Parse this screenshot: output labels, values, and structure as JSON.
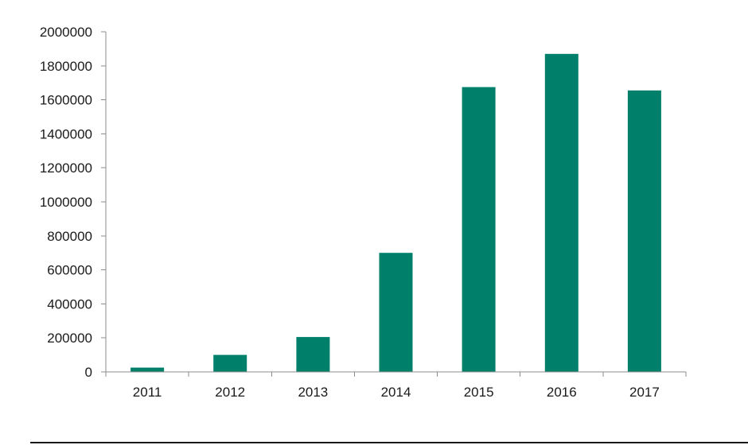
{
  "chart_data": {
    "type": "bar",
    "categories": [
      "2011",
      "2012",
      "2013",
      "2014",
      "2015",
      "2016",
      "2017"
    ],
    "values": [
      25000,
      100000,
      205000,
      700000,
      1675000,
      1870000,
      1655000
    ],
    "title": "",
    "xlabel": "",
    "ylabel": "",
    "ylim": [
      0,
      2000000
    ],
    "yticks": [
      "0",
      "200000",
      "400000",
      "600000",
      "800000",
      "1000000",
      "1200000",
      "1400000",
      "1600000",
      "1800000",
      "2000000"
    ],
    "grid": false,
    "legend": "none",
    "bar_color": "#007f6a"
  }
}
